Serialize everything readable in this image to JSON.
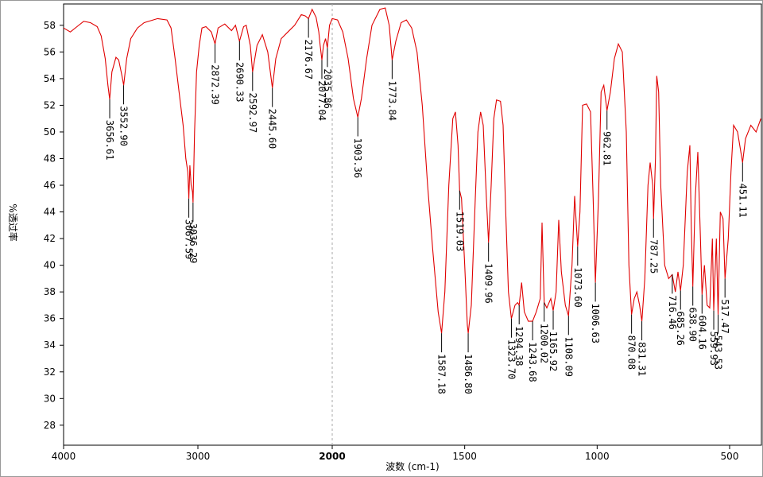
{
  "chart_data": {
    "type": "line",
    "xlabel": "波数 (cm-1)",
    "ylabel": "%透过率",
    "color": "#e00000",
    "xlim": [
      4000,
      380
    ],
    "xbreak": 2000,
    "xticks": [
      4000,
      3000,
      2000,
      1500,
      1000,
      500
    ],
    "ylim": [
      26.5,
      59.6
    ],
    "yticks": [
      28,
      30,
      32,
      34,
      36,
      38,
      40,
      42,
      44,
      46,
      48,
      50,
      52,
      54,
      56,
      58
    ],
    "x": [
      4000,
      3950,
      3900,
      3850,
      3800,
      3750,
      3720,
      3690,
      3670,
      3656.61,
      3640,
      3610,
      3590,
      3565,
      3552.9,
      3530,
      3500,
      3450,
      3400,
      3300,
      3230,
      3200,
      3170,
      3140,
      3110,
      3090,
      3075,
      3067.59,
      3060,
      3050,
      3040,
      3036.29,
      3025,
      3010,
      2990,
      2970,
      2940,
      2900,
      2872.39,
      2850,
      2800,
      2750,
      2720,
      2690.33,
      2660,
      2640,
      2610,
      2592.97,
      2560,
      2520,
      2480,
      2445.6,
      2420,
      2380,
      2330,
      2280,
      2230,
      2200,
      2176.67,
      2150,
      2120,
      2100,
      2090,
      2077.04,
      2065,
      2050,
      2035.86,
      2020,
      2000,
      1980,
      1960,
      1940,
      1920,
      1903.36,
      1890,
      1870,
      1850,
      1820,
      1800,
      1785,
      1773.84,
      1760,
      1740,
      1720,
      1700,
      1680,
      1660,
      1640,
      1620,
      1600,
      1587.18,
      1575,
      1560,
      1545,
      1535,
      1525,
      1519.03,
      1512,
      1500,
      1490,
      1486.8,
      1475,
      1460,
      1450,
      1440,
      1430,
      1418,
      1409.96,
      1400,
      1390,
      1380,
      1365,
      1355,
      1345,
      1335,
      1323.7,
      1310,
      1300,
      1294.38,
      1285,
      1275,
      1260,
      1243.68,
      1230,
      1215,
      1208,
      1200.02,
      1190,
      1175,
      1165.92,
      1155,
      1145,
      1135,
      1120,
      1108.09,
      1095,
      1085,
      1073.6,
      1065,
      1055,
      1040,
      1025,
      1015,
      1006.63,
      995,
      985,
      975,
      962.81,
      950,
      935,
      920,
      905,
      890,
      880,
      870.08,
      860,
      850,
      840,
      831.31,
      820,
      808,
      800,
      790,
      787.25,
      780,
      775,
      768,
      760,
      745,
      730,
      716.46,
      705,
      695,
      685.26,
      675,
      660,
      650,
      645,
      638.9,
      630,
      620,
      610,
      604.16,
      595,
      585,
      575,
      565,
      559.93,
      550,
      543.53,
      535,
      525,
      517.47,
      505,
      495,
      485,
      470,
      451.11,
      440,
      420,
      400,
      382
    ],
    "values": [
      57.8,
      57.5,
      57.9,
      58.3,
      58.2,
      57.9,
      57.2,
      55.5,
      53.5,
      52.45,
      54.5,
      55.6,
      55.4,
      54.2,
      53.5,
      55.5,
      57.0,
      57.8,
      58.2,
      58.5,
      58.4,
      57.8,
      55.5,
      53.0,
      50.5,
      48.0,
      47.0,
      45.0,
      47.5,
      46.0,
      45.5,
      44.7,
      50.0,
      54.5,
      56.5,
      57.8,
      57.9,
      57.5,
      56.6,
      57.8,
      58.1,
      57.6,
      58.0,
      56.8,
      57.9,
      58.0,
      56.5,
      54.5,
      56.5,
      57.3,
      56.0,
      53.3,
      55.5,
      57.0,
      57.5,
      58.0,
      58.8,
      58.7,
      58.5,
      59.2,
      58.6,
      57.5,
      56.5,
      55.4,
      56.5,
      57.0,
      56.3,
      58.0,
      58.5,
      58.4,
      57.5,
      55.5,
      52.5,
      51.1,
      52.5,
      55.5,
      58.0,
      59.2,
      59.3,
      58.0,
      55.4,
      56.8,
      58.2,
      58.4,
      57.8,
      56.0,
      52.0,
      46.0,
      41.0,
      36.5,
      34.9,
      38.0,
      46.0,
      51.0,
      51.5,
      49.0,
      45.6,
      45.0,
      40.0,
      35.5,
      34.9,
      37.0,
      45.0,
      50.0,
      51.5,
      50.5,
      45.0,
      41.7,
      46.0,
      51.0,
      52.4,
      52.3,
      50.5,
      44.0,
      38.0,
      36.0,
      37.0,
      37.2,
      37.0,
      38.7,
      36.5,
      35.8,
      35.8,
      36.5,
      37.5,
      43.2,
      37.2,
      36.8,
      37.5,
      36.6,
      38.0,
      43.4,
      39.5,
      37.0,
      36.2,
      40.0,
      45.2,
      41.4,
      44.0,
      52.0,
      52.1,
      51.5,
      45.0,
      38.7,
      45.0,
      53.0,
      53.5,
      51.6,
      53.0,
      55.5,
      56.6,
      56.0,
      50.0,
      40.0,
      36.3,
      37.5,
      38.0,
      37.0,
      35.8,
      39.0,
      46.0,
      47.7,
      46.0,
      43.5,
      48.0,
      54.2,
      53.0,
      46.0,
      40.0,
      39.0,
      39.3,
      38.0,
      39.5,
      38.1,
      40.0,
      47.0,
      49.0,
      43.0,
      38.4,
      45.0,
      48.5,
      42.0,
      37.8,
      40.0,
      37.0,
      36.8,
      42.0,
      36.6,
      42.0,
      36.3,
      44.0,
      43.5,
      39.0,
      42.0,
      47.0,
      50.5,
      50.0,
      47.7,
      49.5,
      50.5,
      50.0,
      51.0
    ],
    "peaks": [
      {
        "x": 3656.61,
        "y": 52.45,
        "label": "3656.61"
      },
      {
        "x": 3552.9,
        "y": 53.5,
        "label": "3552.90"
      },
      {
        "x": 3067.59,
        "y": 45.0,
        "label": "3067.59"
      },
      {
        "x": 3036.29,
        "y": 44.7,
        "label": "3036.29"
      },
      {
        "x": 2872.39,
        "y": 56.6,
        "label": "2872.39"
      },
      {
        "x": 2690.33,
        "y": 56.8,
        "label": "2690.33"
      },
      {
        "x": 2592.97,
        "y": 54.5,
        "label": "2592.97"
      },
      {
        "x": 2445.6,
        "y": 53.3,
        "label": "2445.60"
      },
      {
        "x": 2176.67,
        "y": 58.5,
        "label": "2176.67"
      },
      {
        "x": 2077.04,
        "y": 55.4,
        "label": "2077.04"
      },
      {
        "x": 2035.86,
        "y": 56.3,
        "label": "2035.86"
      },
      {
        "x": 1903.36,
        "y": 51.1,
        "label": "1903.36"
      },
      {
        "x": 1773.84,
        "y": 55.4,
        "label": "1773.84"
      },
      {
        "x": 1587.18,
        "y": 34.9,
        "label": "1587.18"
      },
      {
        "x": 1519.03,
        "y": 45.6,
        "label": "1519.03"
      },
      {
        "x": 1486.8,
        "y": 34.9,
        "label": "1486.80"
      },
      {
        "x": 1409.96,
        "y": 41.7,
        "label": "1409.96"
      },
      {
        "x": 1323.7,
        "y": 36.0,
        "label": "1323.70"
      },
      {
        "x": 1294.38,
        "y": 37.0,
        "label": "1294.38"
      },
      {
        "x": 1243.68,
        "y": 35.8,
        "label": "1243.68"
      },
      {
        "x": 1200.02,
        "y": 37.2,
        "label": "1200.02"
      },
      {
        "x": 1165.92,
        "y": 36.6,
        "label": "1165.92"
      },
      {
        "x": 1108.09,
        "y": 36.2,
        "label": "1108.09"
      },
      {
        "x": 1073.6,
        "y": 41.4,
        "label": "1073.60"
      },
      {
        "x": 1006.63,
        "y": 38.7,
        "label": "1006.63"
      },
      {
        "x": 962.81,
        "y": 51.6,
        "label": "962.81"
      },
      {
        "x": 870.08,
        "y": 36.3,
        "label": "870.08"
      },
      {
        "x": 831.31,
        "y": 35.8,
        "label": "831.31"
      },
      {
        "x": 787.25,
        "y": 43.5,
        "label": "787.25"
      },
      {
        "x": 716.46,
        "y": 39.3,
        "label": "716.46"
      },
      {
        "x": 685.26,
        "y": 38.1,
        "label": "685.26"
      },
      {
        "x": 638.9,
        "y": 38.4,
        "label": "638.90"
      },
      {
        "x": 604.16,
        "y": 37.8,
        "label": "604.16"
      },
      {
        "x": 559.93,
        "y": 36.6,
        "label": "559.93"
      },
      {
        "x": 543.53,
        "y": 36.3,
        "label": "543.53"
      },
      {
        "x": 517.47,
        "y": 39.0,
        "label": "517.47"
      },
      {
        "x": 451.11,
        "y": 47.7,
        "label": "451.11"
      }
    ]
  }
}
